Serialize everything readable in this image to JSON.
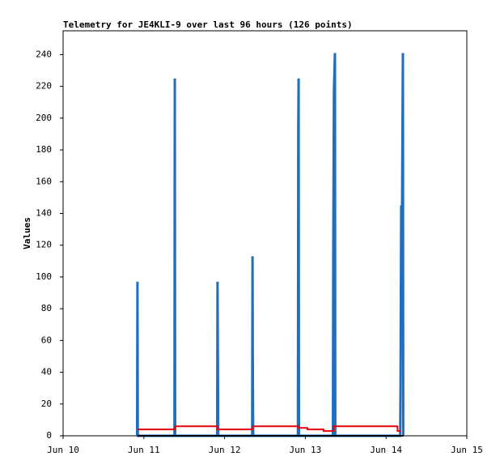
{
  "chart_data": {
    "type": "line",
    "title": "Telemetry for JE4KLI-9 over last 96 hours (126 points)",
    "ylabel": "Values",
    "xlim": [
      0,
      120
    ],
    "xticks": [
      {
        "value": 0,
        "label": "Jun 10"
      },
      {
        "value": 24,
        "label": "Jun 11"
      },
      {
        "value": 48,
        "label": "Jun 12"
      },
      {
        "value": 72,
        "label": "Jun 13"
      },
      {
        "value": 96,
        "label": "Jun 14"
      },
      {
        "value": 120,
        "label": "Jun 15"
      }
    ],
    "ylim": [
      0,
      255
    ],
    "yticks": [
      0,
      20,
      40,
      60,
      80,
      100,
      120,
      140,
      160,
      180,
      200,
      220,
      240
    ],
    "grid": false,
    "series": [
      {
        "color": "#1f6fbf",
        "x": [
          22.0,
          22.1,
          22.2,
          33.1,
          33.2,
          33.3,
          45.8,
          45.9,
          46.0,
          46.1,
          56.2,
          56.3,
          56.4,
          56.5,
          69.8,
          69.9,
          70.0,
          70.1,
          80.2,
          80.3,
          80.5,
          80.8,
          80.9,
          100.2,
          100.3,
          100.5,
          100.7,
          101.0,
          101.1
        ],
        "values": [
          0,
          97,
          0,
          0,
          225,
          0,
          0,
          97,
          49,
          0,
          0,
          113,
          33,
          0,
          0,
          193,
          225,
          0,
          0,
          113,
          217,
          241,
          0,
          0,
          33,
          145,
          121,
          241,
          0
        ]
      },
      {
        "color": "#e8000b",
        "x": [
          22.1,
          33.2,
          33.2,
          45.9,
          45.9,
          56.3,
          56.3,
          70.0,
          70.0,
          72.6,
          72.6,
          77.4,
          77.4,
          80.3,
          80.3,
          99.4,
          99.4,
          100.2
        ],
        "values": [
          4,
          4,
          6,
          6,
          4,
          4,
          6,
          6,
          5,
          5,
          4,
          4,
          3,
          3,
          6,
          6,
          3,
          3
        ]
      },
      {
        "color": "#000000",
        "x": [
          22.1,
          101.2
        ],
        "values": [
          0,
          0
        ]
      }
    ]
  }
}
